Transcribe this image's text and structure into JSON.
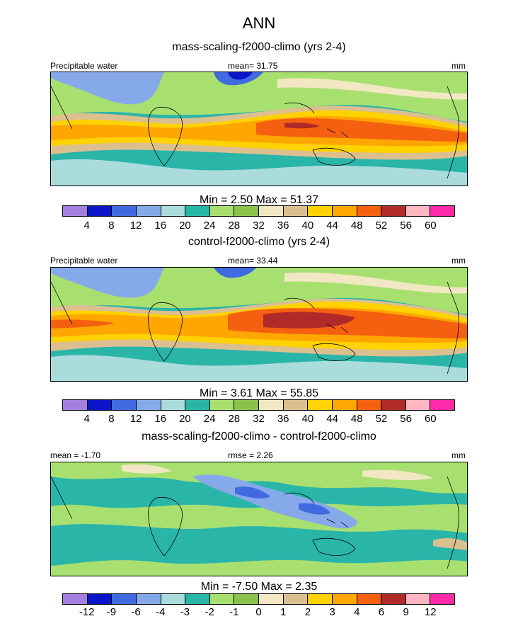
{
  "title": "ANN",
  "colors": {
    "precip": [
      "#a57fe0",
      "#0a14c8",
      "#3f6ae0",
      "#86a9ea",
      "#abdcdc",
      "#2ab5a9",
      "#a8e070",
      "#8bc34a",
      "#f2e7c3",
      "#dcbf8f",
      "#ffd200",
      "#ffa600",
      "#f56010",
      "#b02a2a",
      "#ffb6c1",
      "#ff2aa8"
    ],
    "diff": [
      "#a57fe0",
      "#0a14c8",
      "#3f6ae0",
      "#86a9ea",
      "#abdcdc",
      "#2ab5a9",
      "#a8e070",
      "#8bc34a",
      "#f2e7c3",
      "#dcbf8f",
      "#ffd200",
      "#ffa600",
      "#f56010",
      "#b02a2a",
      "#ffb6c1",
      "#ff2aa8"
    ]
  },
  "panels": [
    {
      "title": "mass-scaling-f2000-climo (yrs 2-4)",
      "left_label": "Precipitable water",
      "center_label": "mean=  31.75",
      "right_label": "mm",
      "minmax": "Min =   2.50 Max =  51.37",
      "ticks": [
        "4",
        "8",
        "12",
        "16",
        "20",
        "24",
        "28",
        "32",
        "36",
        "40",
        "44",
        "48",
        "52",
        "56",
        "60"
      ]
    },
    {
      "title": "control-f2000-climo (yrs 2-4)",
      "left_label": "Precipitable water",
      "center_label": "mean=  33.44",
      "right_label": "mm",
      "minmax": "Min =   3.61 Max =  55.85",
      "ticks": [
        "4",
        "8",
        "12",
        "16",
        "20",
        "24",
        "28",
        "32",
        "36",
        "40",
        "44",
        "48",
        "52",
        "56",
        "60"
      ]
    },
    {
      "title": "mass-scaling-f2000-climo - control-f2000-climo",
      "left_label": "mean =  -1.70",
      "center_label": "rmse =   2.26",
      "right_label": "mm",
      "minmax": "Min =  -7.50 Max =   2.35",
      "ticks": [
        "-12",
        "-9",
        "-6",
        "-4",
        "-3",
        "-2",
        "-1",
        "0",
        "1",
        "2",
        "3",
        "4",
        "6",
        "9",
        "12"
      ]
    }
  ],
  "chart_data": [
    {
      "type": "heatmap",
      "title": "mass-scaling-f2000-climo (yrs 2-4)",
      "variable": "Precipitable water",
      "units": "mm",
      "mean": 31.75,
      "min": 2.5,
      "max": 51.37,
      "contour_levels": [
        4,
        8,
        12,
        16,
        20,
        24,
        28,
        32,
        36,
        40,
        44,
        48,
        52,
        56,
        60
      ]
    },
    {
      "type": "heatmap",
      "title": "control-f2000-climo (yrs 2-4)",
      "variable": "Precipitable water",
      "units": "mm",
      "mean": 33.44,
      "min": 3.61,
      "max": 55.85,
      "contour_levels": [
        4,
        8,
        12,
        16,
        20,
        24,
        28,
        32,
        36,
        40,
        44,
        48,
        52,
        56,
        60
      ]
    },
    {
      "type": "heatmap",
      "title": "mass-scaling-f2000-climo - control-f2000-climo",
      "units": "mm",
      "mean": -1.7,
      "rmse": 2.26,
      "min": -7.5,
      "max": 2.35,
      "contour_levels": [
        -12,
        -9,
        -6,
        -4,
        -3,
        -2,
        -1,
        0,
        1,
        2,
        3,
        4,
        6,
        9,
        12
      ]
    }
  ]
}
